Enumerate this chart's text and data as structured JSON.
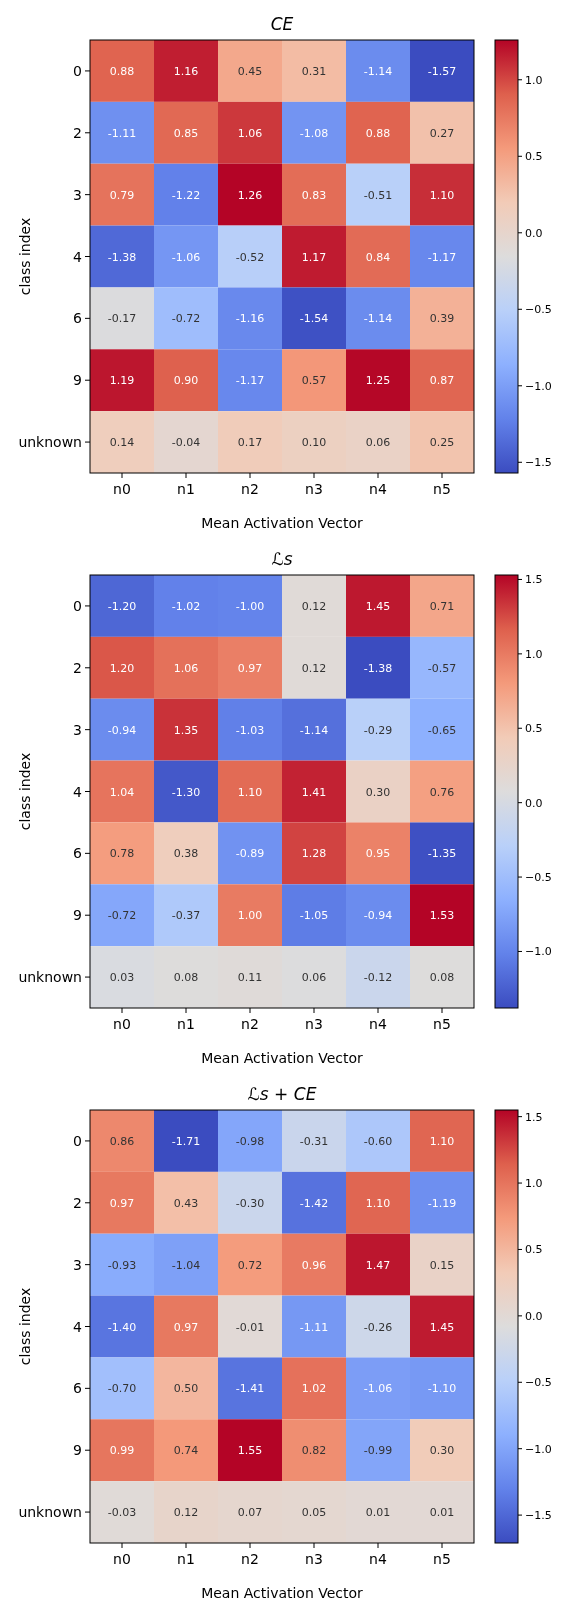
{
  "chart_data": [
    {
      "type": "heatmap",
      "title": "CE",
      "xlabel": "Mean Activation Vector",
      "ylabel": "class index",
      "categories": [
        "n0",
        "n1",
        "n2",
        "n3",
        "n4",
        "n5"
      ],
      "y_categories": [
        "0",
        "2",
        "3",
        "4",
        "6",
        "9",
        "unknown"
      ],
      "cells": [
        [
          0.88,
          1.16,
          0.45,
          0.31,
          -1.14,
          -1.57
        ],
        [
          -1.11,
          0.85,
          1.06,
          -1.08,
          0.88,
          0.27
        ],
        [
          0.79,
          -1.22,
          1.26,
          0.83,
          -0.51,
          1.1
        ],
        [
          -1.38,
          -1.06,
          -0.52,
          1.17,
          0.84,
          -1.17
        ],
        [
          -0.17,
          -0.72,
          -1.16,
          -1.54,
          -1.14,
          0.39
        ],
        [
          1.19,
          0.9,
          -1.17,
          0.57,
          1.25,
          0.87
        ],
        [
          0.14,
          -0.04,
          0.17,
          0.1,
          0.06,
          0.25
        ]
      ],
      "cell_labels": [
        [
          "0.88",
          "1.16",
          "0.45",
          "0.31",
          "-1.14",
          "-1.57"
        ],
        [
          "-1.11",
          "0.85",
          "1.06",
          "-1.08",
          "0.88",
          "0.27"
        ],
        [
          "0.79",
          "-1.22",
          "1.26",
          "0.83",
          "-0.51",
          "1.10"
        ],
        [
          "-1.38",
          "-1.06",
          "-0.52",
          "1.17",
          "0.84",
          "-1.17"
        ],
        [
          "-0.17",
          "-0.72",
          "-1.16",
          "-1.54",
          "-1.14",
          "0.39"
        ],
        [
          "1.19",
          "0.90",
          "-1.17",
          "0.57",
          "1.25",
          "0.87"
        ],
        [
          "0.14",
          "-0.04",
          "0.17",
          "0.10",
          "0.06",
          "0.25"
        ]
      ],
      "clim": [
        -1.57,
        1.26
      ],
      "cticks": [
        {
          "value": -1.5,
          "label": "−1.5"
        },
        {
          "value": -1.0,
          "label": "−1.0"
        },
        {
          "value": -0.5,
          "label": "−0.5"
        },
        {
          "value": 0,
          "label": "0.0"
        },
        {
          "value": 0.5,
          "label": "0.5"
        },
        {
          "value": 1.0,
          "label": "1.0"
        }
      ]
    },
    {
      "type": "heatmap",
      "title": "ℒs",
      "xlabel": "Mean Activation Vector",
      "ylabel": "class index",
      "categories": [
        "n0",
        "n1",
        "n2",
        "n3",
        "n4",
        "n5"
      ],
      "y_categories": [
        "0",
        "2",
        "3",
        "4",
        "6",
        "9",
        "unknown"
      ],
      "cells": [
        [
          -1.2,
          -1.02,
          -1.0,
          0.12,
          1.45,
          0.71
        ],
        [
          1.2,
          1.06,
          0.97,
          0.12,
          -1.38,
          -0.57
        ],
        [
          -0.94,
          1.35,
          -1.03,
          -1.14,
          -0.29,
          -0.65
        ],
        [
          1.04,
          -1.3,
          1.1,
          1.41,
          0.3,
          0.76
        ],
        [
          0.78,
          0.38,
          -0.89,
          1.28,
          0.95,
          -1.35
        ],
        [
          -0.72,
          -0.37,
          1.0,
          -1.05,
          -0.94,
          1.53
        ],
        [
          0.03,
          0.08,
          0.11,
          0.06,
          -0.12,
          0.08
        ]
      ],
      "cell_labels": [
        [
          "-1.20",
          "-1.02",
          "-1.00",
          "0.12",
          "1.45",
          "0.71"
        ],
        [
          "1.20",
          "1.06",
          "0.97",
          "0.12",
          "-1.38",
          "-0.57"
        ],
        [
          "-0.94",
          "1.35",
          "-1.03",
          "-1.14",
          "-0.29",
          "-0.65"
        ],
        [
          "1.04",
          "-1.30",
          "1.10",
          "1.41",
          "0.30",
          "0.76"
        ],
        [
          "0.78",
          "0.38",
          "-0.89",
          "1.28",
          "0.95",
          "-1.35"
        ],
        [
          "-0.72",
          "-0.37",
          "1.00",
          "-1.05",
          "-0.94",
          "1.53"
        ],
        [
          "0.03",
          "0.08",
          "0.11",
          "0.06",
          "-0.12",
          "0.08"
        ]
      ],
      "clim": [
        -1.38,
        1.53
      ],
      "cticks": [
        {
          "value": -1.0,
          "label": "−1.0"
        },
        {
          "value": -0.5,
          "label": "−0.5"
        },
        {
          "value": 0,
          "label": "0.0"
        },
        {
          "value": 0.5,
          "label": "0.5"
        },
        {
          "value": 1.0,
          "label": "1.0"
        },
        {
          "value": 1.5,
          "label": "1.5"
        }
      ]
    },
    {
      "type": "heatmap",
      "title": "ℒs + CE",
      "xlabel": "Mean Activation Vector",
      "ylabel": "class index",
      "categories": [
        "n0",
        "n1",
        "n2",
        "n3",
        "n4",
        "n5"
      ],
      "y_categories": [
        "0",
        "2",
        "3",
        "4",
        "6",
        "9",
        "unknown"
      ],
      "cells": [
        [
          0.86,
          -1.71,
          -0.98,
          -0.31,
          -0.6,
          1.1
        ],
        [
          0.97,
          0.43,
          -0.3,
          -1.42,
          1.1,
          -1.19
        ],
        [
          -0.93,
          -1.04,
          0.72,
          0.96,
          1.47,
          0.15
        ],
        [
          -1.4,
          0.97,
          -0.01,
          -1.11,
          -0.26,
          1.45
        ],
        [
          -0.7,
          0.5,
          -1.41,
          1.02,
          -1.06,
          -1.1
        ],
        [
          0.99,
          0.74,
          1.55,
          0.82,
          -0.99,
          0.3
        ],
        [
          -0.03,
          0.12,
          0.07,
          0.05,
          0.01,
          0.01
        ]
      ],
      "cell_labels": [
        [
          "0.86",
          "-1.71",
          "-0.98",
          "-0.31",
          "-0.60",
          "1.10"
        ],
        [
          "0.97",
          "0.43",
          "-0.30",
          "-1.42",
          "1.10",
          "-1.19"
        ],
        [
          "-0.93",
          "-1.04",
          "0.72",
          "0.96",
          "1.47",
          "0.15"
        ],
        [
          "-1.40",
          "0.97",
          "-0.01",
          "-1.11",
          "-0.26",
          "1.45"
        ],
        [
          "-0.70",
          "0.50",
          "-1.41",
          "1.02",
          "-1.06",
          "-1.10"
        ],
        [
          "0.99",
          "0.74",
          "1.55",
          "0.82",
          "-0.99",
          "0.30"
        ],
        [
          "-0.03",
          "0.12",
          "0.07",
          "0.05",
          "0.01",
          "0.01"
        ]
      ],
      "clim": [
        -1.71,
        1.55
      ],
      "cticks": [
        {
          "value": -1.5,
          "label": "−1.5"
        },
        {
          "value": -1.0,
          "label": "−1.0"
        },
        {
          "value": -0.5,
          "label": "−0.5"
        },
        {
          "value": 0,
          "label": "0.0"
        },
        {
          "value": 0.5,
          "label": "0.5"
        },
        {
          "value": 1.0,
          "label": "1.0"
        },
        {
          "value": 1.5,
          "label": "1.5"
        }
      ]
    }
  ]
}
